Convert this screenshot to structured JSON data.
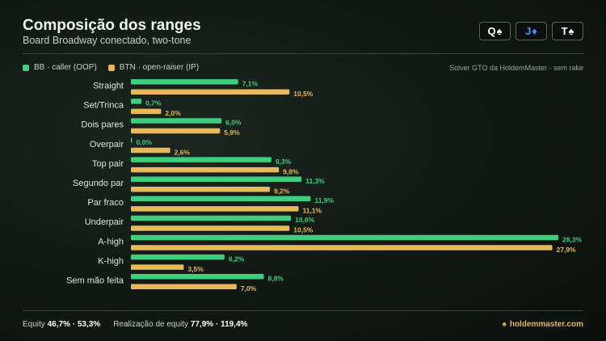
{
  "header": {
    "title": "Composição dos ranges",
    "subtitle": "Board Broadway conectado, two-tone"
  },
  "board": [
    {
      "rank": "Q",
      "suit": "♠",
      "color": "black"
    },
    {
      "rank": "J",
      "suit": "♦",
      "color": "blue"
    },
    {
      "rank": "T",
      "suit": "♠",
      "color": "black"
    }
  ],
  "legend": {
    "bb_label": "BB · caller (OOP)",
    "btn_label": "BTN · open-raiser (IP)",
    "source": "Solver GTO da HoldemMaster · sem rake"
  },
  "chart_data": {
    "type": "bar",
    "orientation": "horizontal",
    "categories": [
      "Straight",
      "Set/Trinca",
      "Dois pares",
      "Overpair",
      "Top pair",
      "Segundo par",
      "Par fraco",
      "Underpair",
      "A-high",
      "K-high",
      "Sem mão feita"
    ],
    "series": [
      {
        "name": "BB · caller (OOP)",
        "color": "#3ecf7e",
        "values": [
          7.1,
          0.7,
          6.0,
          0.0,
          9.3,
          11.3,
          11.9,
          10.6,
          28.3,
          6.2,
          8.8
        ],
        "labels": [
          "7,1%",
          "0,7%",
          "6,0%",
          "0,0%",
          "9,3%",
          "11,3%",
          "11,9%",
          "10,6%",
          "28,3%",
          "6,2%",
          "8,8%"
        ]
      },
      {
        "name": "BTN · open-raiser (IP)",
        "color": "#e6b95a",
        "values": [
          10.5,
          2.0,
          5.9,
          2.6,
          9.8,
          9.2,
          11.1,
          10.5,
          27.9,
          3.5,
          7.0
        ],
        "labels": [
          "10,5%",
          "2,0%",
          "5,9%",
          "2,6%",
          "9,8%",
          "9,2%",
          "11,1%",
          "10,5%",
          "27,9%",
          "3,5%",
          "7,0%"
        ]
      }
    ],
    "xlim": [
      0,
      28.3
    ],
    "grid": false,
    "legend_position": "top-left"
  },
  "footer": {
    "equity_label": "Equity",
    "equity_values": "46,7% · 53,3%",
    "realization_label": "Realização de equity",
    "realization_values": "77,9% · 119,4%",
    "brand": "holdemmaster.com",
    "brand_icon": "spade-icon"
  }
}
